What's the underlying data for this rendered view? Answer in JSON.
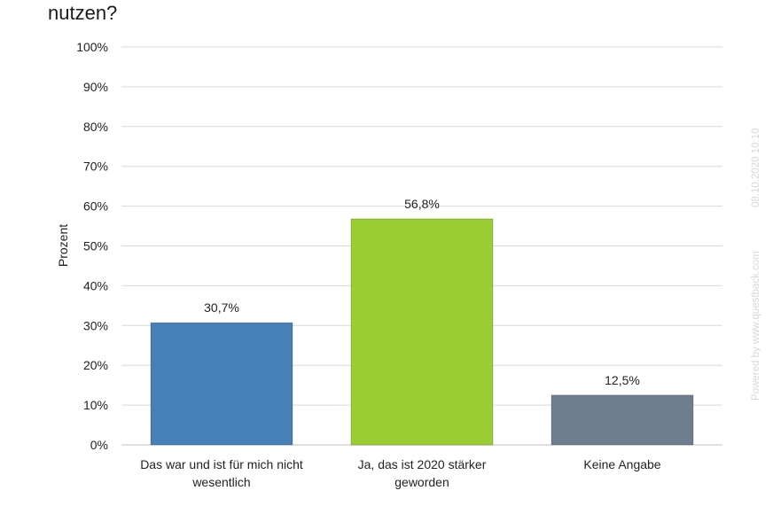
{
  "title": "nutzen?",
  "chart_data": {
    "type": "bar",
    "categories": [
      [
        "Das war und ist für mich nicht",
        "wesentlich"
      ],
      [
        "Ja, das ist 2020 stärker",
        "geworden"
      ],
      [
        "Keine Angabe"
      ]
    ],
    "values": [
      30.7,
      56.8,
      12.5
    ],
    "data_labels": [
      "30,7%",
      "56,8%",
      "12,5%"
    ],
    "colors": [
      "#4680b6",
      "#9acd32",
      "#6e7e8f"
    ],
    "ylabel": "Prozent",
    "ylim": [
      0,
      100
    ],
    "yticks": [
      0,
      10,
      20,
      30,
      40,
      50,
      60,
      70,
      80,
      90,
      100
    ],
    "ytick_labels": [
      "0%",
      "10%",
      "20%",
      "30%",
      "40%",
      "50%",
      "60%",
      "70%",
      "80%",
      "90%",
      "100%"
    ],
    "grid": true
  },
  "watermark": {
    "powered": "Powered by www.questback.com",
    "timestamp": "08.10.2020 10:10"
  }
}
